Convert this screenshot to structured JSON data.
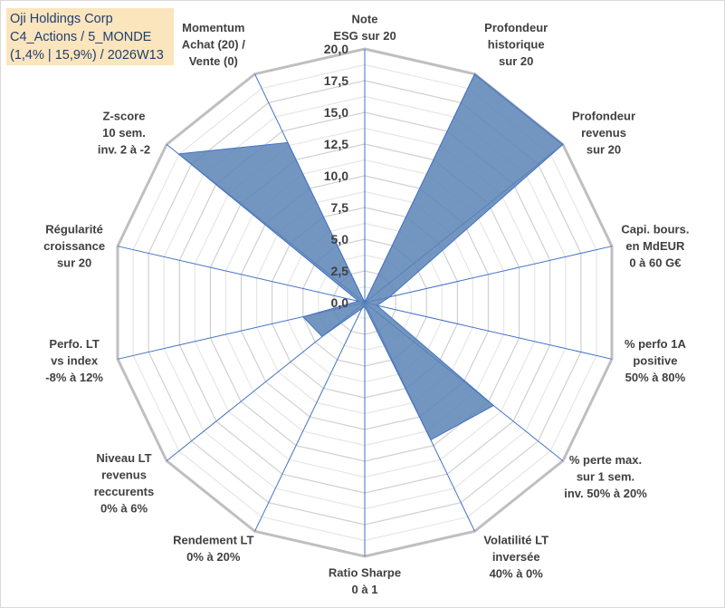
{
  "title_box": {
    "line1": "Oji Holdings Corp",
    "line2": "C4_Actions / 5_MONDE",
    "line3": "(1,4% | 15,9%) / 2026W13"
  },
  "chart_data": {
    "type": "radar",
    "rmin": 0,
    "rmax": 20,
    "tick_step": 2.5,
    "grid_levels": 16,
    "tick_labels": [
      "0,0",
      "2,5",
      "5,0",
      "7,5",
      "10,0",
      "12,5",
      "15,0",
      "17,5",
      "20,0"
    ],
    "axes": [
      [
        "Note",
        "ESG sur 20"
      ],
      [
        "Profondeur",
        "historique",
        "sur 20"
      ],
      [
        "Profondeur",
        "revenus",
        "sur 20"
      ],
      [
        "Capi. bours.",
        "en MdEUR",
        "0 à 60 G€"
      ],
      [
        "% perfo 1A",
        "positive",
        "50% à 80%"
      ],
      [
        "% perte max.",
        "sur 1 sem.",
        "inv. 50% à 20%"
      ],
      [
        "Volatilité LT",
        "inversée",
        "40% à 0%"
      ],
      [
        "Ratio Sharpe",
        "0 à 1"
      ],
      [
        "Rendement LT",
        "0% à 20%"
      ],
      [
        "Niveau LT",
        "revenus",
        "reccurents",
        "0% à 6%"
      ],
      [
        "Perfo. LT",
        "vs index",
        "-8% à 12%"
      ],
      [
        "Régularité",
        "croissance",
        "sur 20"
      ],
      [
        "Z-score",
        "10 sem.",
        "inv. 2 à -2"
      ],
      [
        "Momentum",
        "Achat (20) /",
        "Vente (0)"
      ]
    ],
    "series": [
      {
        "name": "Oji Holdings Corp",
        "color": "#5b84b6",
        "values": [
          0,
          20,
          20,
          2,
          1,
          13,
          12,
          0.3,
          0.5,
          4.3,
          5,
          0.5,
          18.8,
          14
        ]
      }
    ]
  }
}
